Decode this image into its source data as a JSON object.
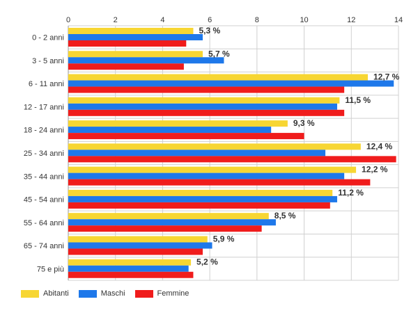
{
  "chart_data": {
    "type": "bar",
    "orientation": "horizontal",
    "categories": [
      "0 - 2 anni",
      "3 - 5 anni",
      "6 - 11 anni",
      "12 - 17 anni",
      "18 - 24 anni",
      "25 - 34 anni",
      "35 - 44 anni",
      "45 - 54 anni",
      "55 - 64 anni",
      "65 - 74 anni",
      "75 e più"
    ],
    "series": [
      {
        "name": "Abitanti",
        "color": "#f7d633",
        "values": [
          5.3,
          5.7,
          12.7,
          11.5,
          9.3,
          12.4,
          12.2,
          11.2,
          8.5,
          5.9,
          5.2
        ]
      },
      {
        "name": "Maschi",
        "color": "#1e78ea",
        "values": [
          5.7,
          6.6,
          13.8,
          11.4,
          8.6,
          10.9,
          11.7,
          11.4,
          8.8,
          6.1,
          5.1
        ]
      },
      {
        "name": "Femmine",
        "color": "#f01c1c",
        "values": [
          5.0,
          4.9,
          11.7,
          11.7,
          10.0,
          13.9,
          12.8,
          11.1,
          8.2,
          5.7,
          5.3
        ]
      }
    ],
    "data_labels": [
      "5,3 %",
      "5,7 %",
      "12,7 %",
      "11,5 %",
      "9,3 %",
      "12,4 %",
      "12,2 %",
      "11,2 %",
      "8,5 %",
      "5,9 %",
      "5,2 %"
    ],
    "x_ticks": [
      "0",
      "2",
      "4",
      "6",
      "8",
      "10",
      "12",
      "14"
    ],
    "xlim": [
      0,
      14
    ],
    "title": "",
    "xlabel": "",
    "ylabel": "",
    "grid": true,
    "legend_position": "bottom-left"
  }
}
